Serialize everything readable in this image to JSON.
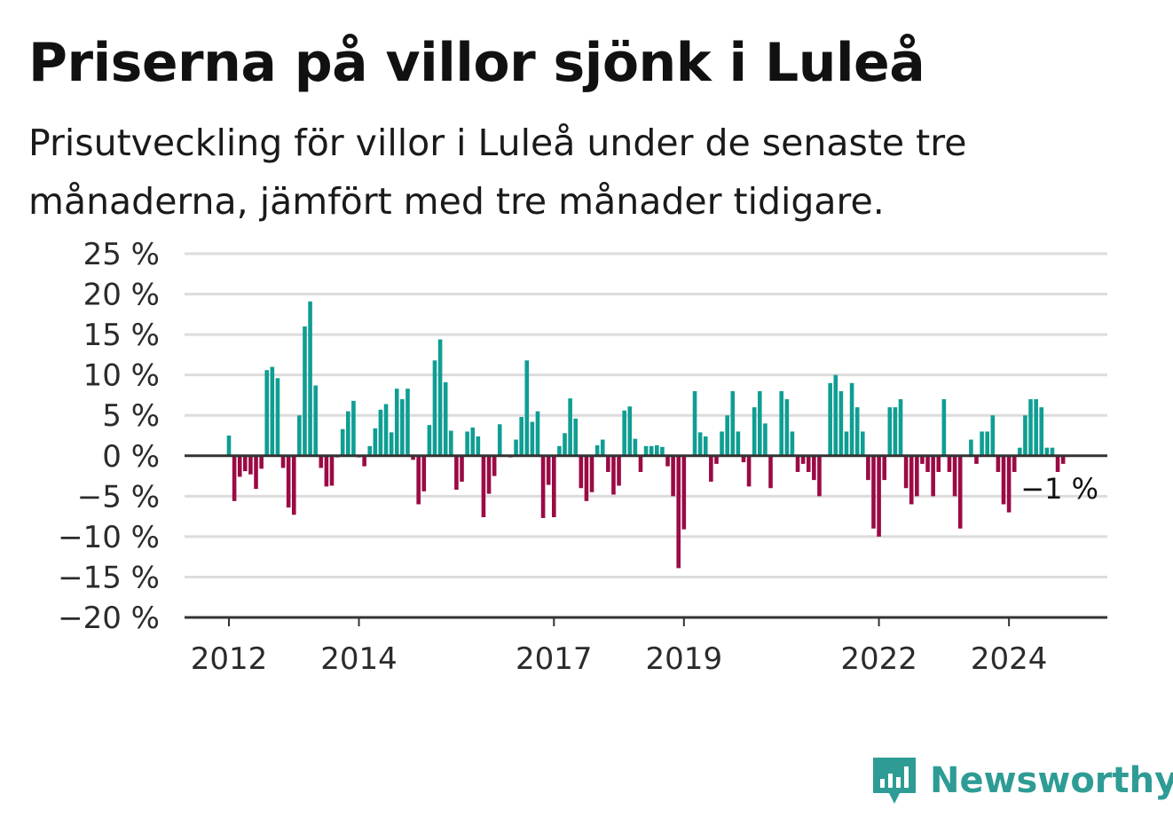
{
  "header": {
    "title": "Priserna på villor sjönk i Luleå",
    "subtitle": "Prisutveckling för villor i Luleå under de senaste tre månaderna, jämfört med tre månader tidigare."
  },
  "brand": {
    "name": "Newsworthy",
    "color": "#2e9c95"
  },
  "colors": {
    "positive": "#0f9e93",
    "negative": "#9b0a45",
    "grid": "#dcdcdc",
    "axis": "#333333"
  },
  "chart_data": {
    "type": "bar",
    "title": "Priserna på villor sjönk i Luleå",
    "subtitle": "Prisutveckling för villor i Luleå under de senaste tre månaderna, jämfört med tre månader tidigare.",
    "x_start": "2012-01",
    "x_end": "2024-10",
    "x_tick_labels": [
      "2012",
      "2014",
      "2017",
      "2019",
      "2022",
      "2024"
    ],
    "y_tick_labels": [
      "25 %",
      "20 %",
      "15 %",
      "10 %",
      "5 %",
      "0 %",
      "−5 %",
      "−10 %",
      "−15 %",
      "−20 %"
    ],
    "ylim": [
      -20,
      25
    ],
    "grid": true,
    "values": [
      2.5,
      -5.6,
      -2.6,
      -1.9,
      -2.3,
      -4.1,
      -1.6,
      10.6,
      11.0,
      9.6,
      -1.5,
      -6.4,
      -7.3,
      5.0,
      16.0,
      19.1,
      8.7,
      -1.5,
      -3.8,
      -3.7,
      -0.2,
      3.3,
      5.5,
      6.8,
      -0.2,
      -1.3,
      1.2,
      3.4,
      5.7,
      6.4,
      2.9,
      8.3,
      7.0,
      8.3,
      -0.5,
      -6.0,
      -4.4,
      3.8,
      11.8,
      14.4,
      9.1,
      3.1,
      -4.2,
      -3.2,
      3.0,
      3.5,
      2.4,
      -7.6,
      -4.7,
      -2.5,
      3.9,
      0,
      -0.2,
      2.0,
      4.8,
      11.8,
      4.2,
      5.5,
      -7.7,
      -3.6,
      -7.6,
      1.2,
      2.8,
      7.1,
      4.6,
      -4.0,
      -5.6,
      -4.5,
      1.3,
      2.0,
      -2.0,
      -4.8,
      -3.7,
      5.6,
      6.1,
      2.1,
      -2.0,
      1.2,
      1.2,
      1.3,
      1.1,
      -1.3,
      -5.0,
      -13.9,
      -9.1,
      0,
      8.0,
      2.9,
      2.4,
      -3.2,
      -1.0,
      3.0,
      5.0,
      8.0,
      3.0,
      -0.8,
      -3.8,
      6.0,
      8.0,
      4.0,
      -4.0,
      0,
      8.0,
      7.0,
      3.0,
      -2.0,
      -1.0,
      -2.0,
      -3.0,
      -5.0,
      0,
      9.0,
      10.0,
      8.0,
      3.0,
      9.0,
      6.0,
      3.0,
      -3.0,
      -9.0,
      -10.0,
      -3.0,
      6.0,
      6.0,
      7.0,
      -4.0,
      -6.0,
      -5.0,
      -1.0,
      -2.0,
      -5.0,
      -2.0,
      7.0,
      -2.0,
      -5.0,
      -9.0,
      0,
      2.0,
      -1.0,
      3.0,
      3.0,
      5.0,
      -2.0,
      -6.0,
      -7.0,
      -2.0,
      1.0,
      5.0,
      7.0,
      7.0,
      6.0,
      1.0,
      1.0,
      -2.0,
      -1.0
    ],
    "end_label": "−1 %"
  }
}
